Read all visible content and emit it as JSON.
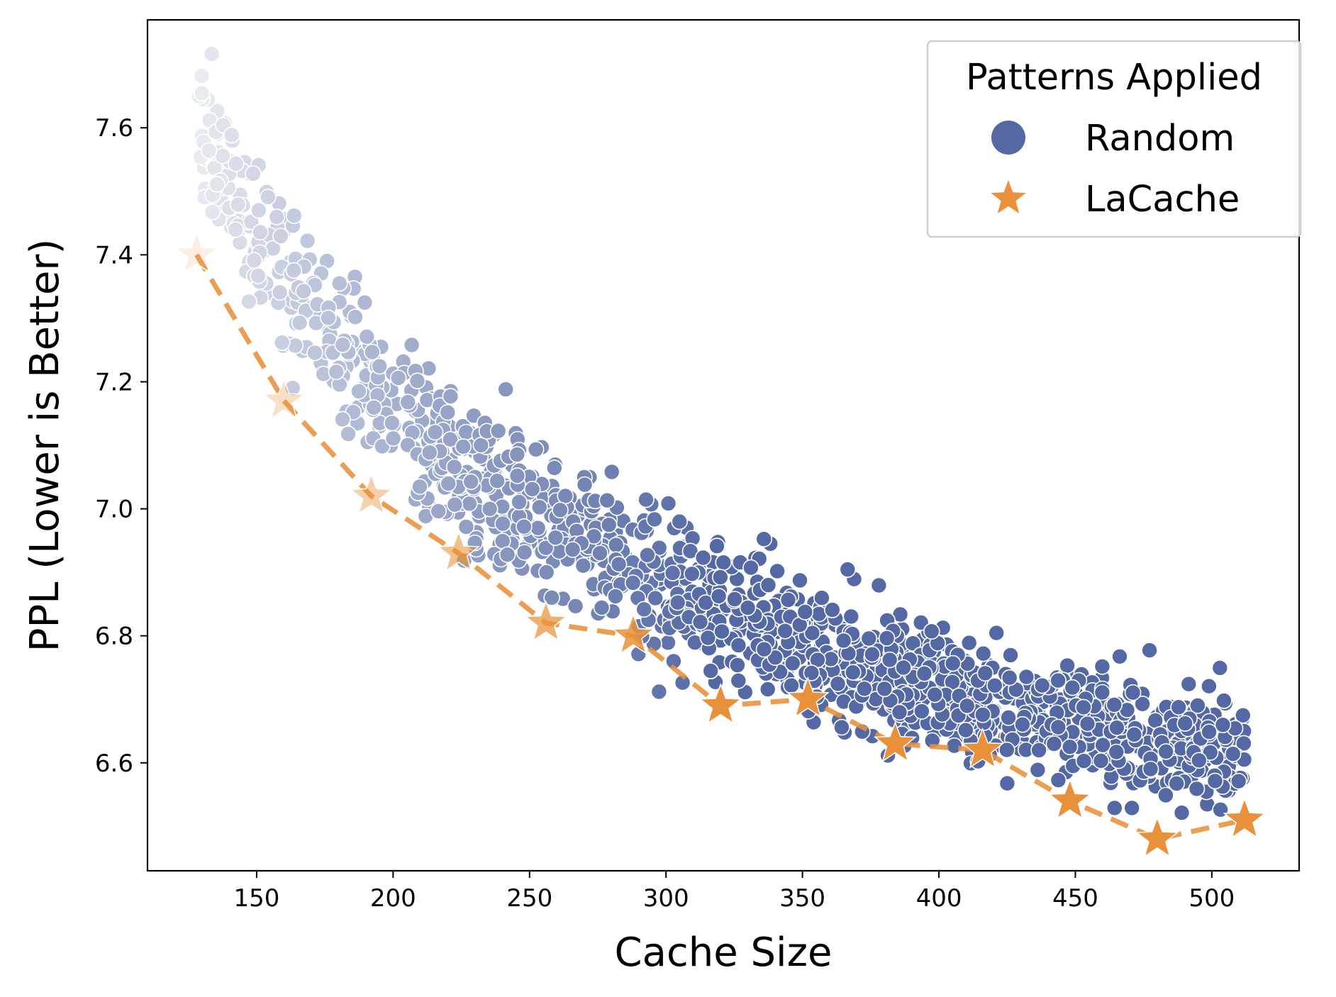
{
  "chart_data": {
    "type": "scatter",
    "xlabel": "Cache Size",
    "ylabel": "PPL (Lower is Better)",
    "xlim": [
      110,
      532
    ],
    "ylim": [
      6.43,
      7.77
    ],
    "xticks": [
      150,
      200,
      250,
      300,
      350,
      400,
      450,
      500
    ],
    "yticks": [
      6.6,
      6.8,
      7.0,
      7.2,
      7.4,
      7.6
    ],
    "xtick_labels": [
      "150",
      "200",
      "250",
      "300",
      "350",
      "400",
      "450",
      "500"
    ],
    "ytick_labels": [
      "6.6",
      "6.8",
      "7.0",
      "7.2",
      "7.4",
      "7.6"
    ],
    "grid": false,
    "legend": {
      "title": "Patterns Applied",
      "placement": "top-right",
      "entries": [
        {
          "label": "Random",
          "marker": "circle",
          "color": "#5469a4"
        },
        {
          "label": "LaCache",
          "marker": "star",
          "color": "#e8913a"
        }
      ]
    },
    "series": [
      {
        "name": "Random",
        "marker": "circle",
        "color": "#5469a4",
        "color_start": "#eceef3",
        "count": 1400,
        "x_range": [
          128,
          512
        ],
        "y_trend": [
          [
            128,
            7.62
          ],
          [
            150,
            7.42
          ],
          [
            175,
            7.29
          ],
          [
            200,
            7.17
          ],
          [
            225,
            7.07
          ],
          [
            250,
            7.0
          ],
          [
            275,
            6.94
          ],
          [
            300,
            6.88
          ],
          [
            325,
            6.83
          ],
          [
            350,
            6.79
          ],
          [
            375,
            6.75
          ],
          [
            400,
            6.72
          ],
          [
            425,
            6.69
          ],
          [
            450,
            6.67
          ],
          [
            475,
            6.64
          ],
          [
            500,
            6.62
          ],
          [
            512,
            6.61
          ]
        ],
        "y_spread": 0.045
      },
      {
        "name": "LaCache",
        "marker": "star",
        "color": "#e8913a",
        "line": "dashed",
        "x": [
          128,
          160,
          192,
          224,
          256,
          288,
          320,
          352,
          384,
          416,
          448,
          480,
          512
        ],
        "y": [
          7.4,
          7.17,
          7.02,
          6.93,
          6.82,
          6.8,
          6.69,
          6.7,
          6.63,
          6.62,
          6.54,
          6.48,
          6.51
        ]
      }
    ]
  }
}
